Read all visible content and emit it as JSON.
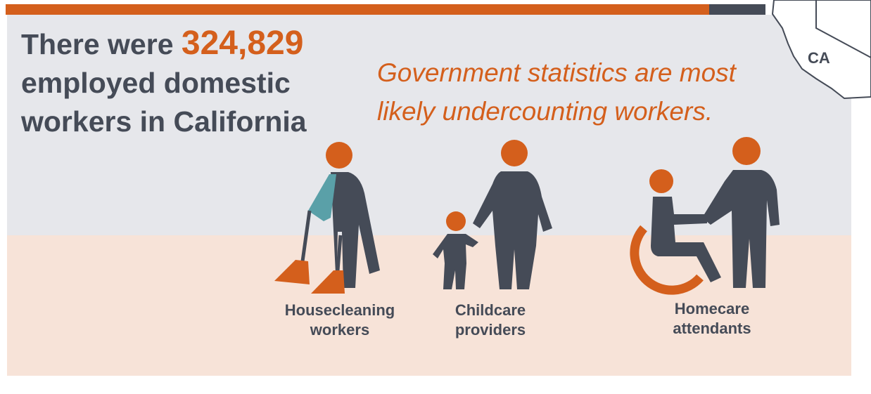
{
  "headline": {
    "prefix": "There were",
    "number": "324,829",
    "lines": [
      "employed domestic",
      "workers in California"
    ]
  },
  "subtitle": {
    "lines": [
      "Government statistics are most",
      "likely undercounting workers."
    ]
  },
  "map_label": "CA",
  "workers": [
    {
      "lines": [
        "Housecleaning",
        "workers"
      ]
    },
    {
      "lines": [
        "Childcare",
        "providers"
      ]
    },
    {
      "lines": [
        "Homecare",
        "attendants"
      ]
    }
  ]
}
